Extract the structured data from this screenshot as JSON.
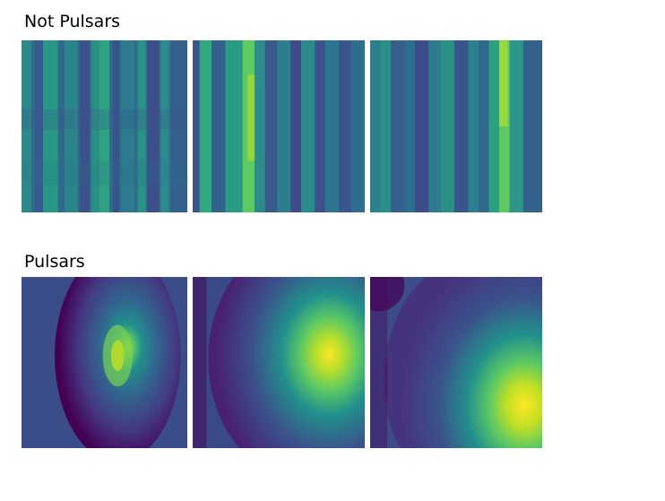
{
  "sections": {
    "not_pulsars": {
      "title": "Not Pulsars"
    },
    "pulsars": {
      "title": "Pulsars"
    }
  },
  "colormap": {
    "name": "viridis",
    "low": "#440154",
    "mid_low": "#3b528b",
    "mid": "#21918c",
    "mid_high": "#5ec962",
    "high": "#fde725"
  }
}
